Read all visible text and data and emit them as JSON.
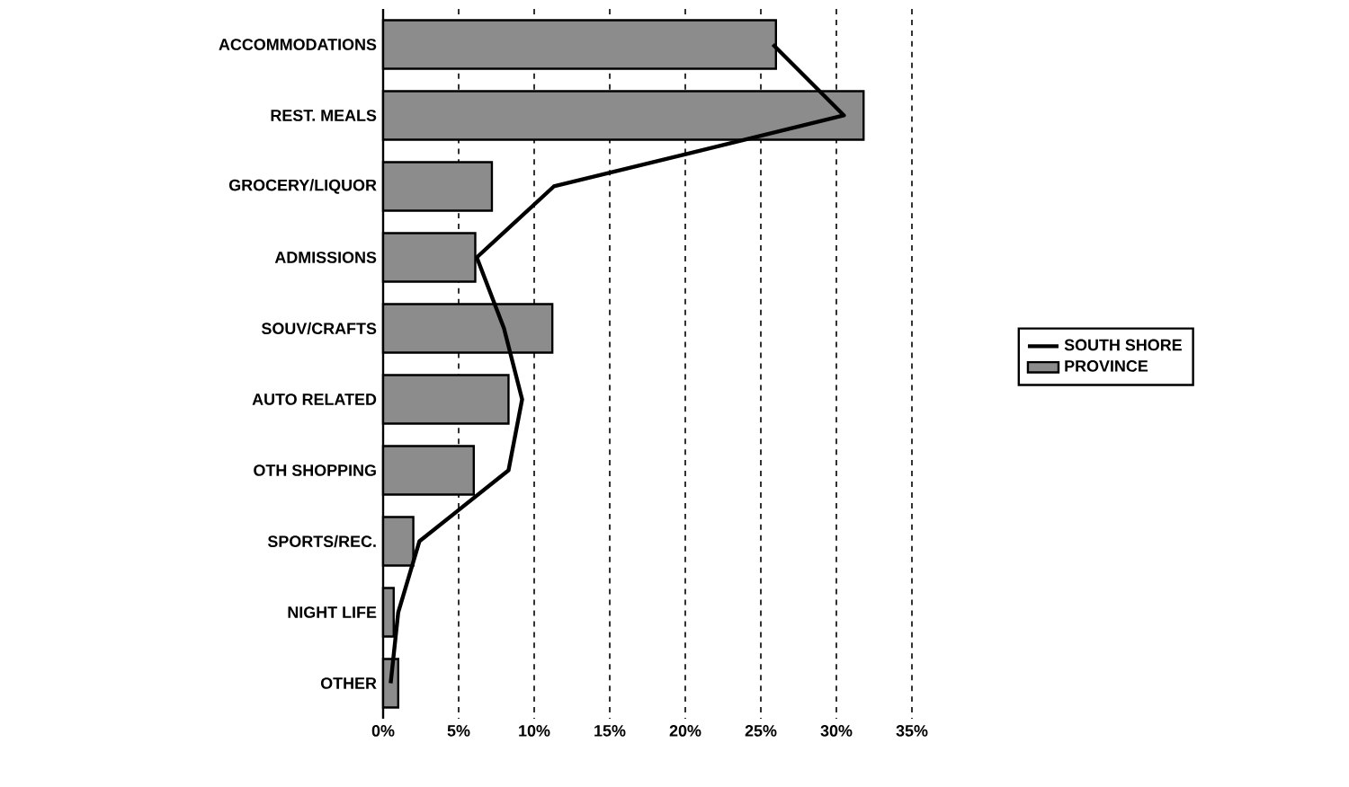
{
  "chart_data": {
    "type": "bar",
    "orientation": "horizontal",
    "categories": [
      "ACCOMMODATIONS",
      "REST. MEALS",
      "GROCERY/LIQUOR",
      "ADMISSIONS",
      "SOUV/CRAFTS",
      "AUTO RELATED",
      "OTH SHOPPING",
      "SPORTS/REC.",
      "NIGHT LIFE",
      "OTHER"
    ],
    "series": [
      {
        "name": "PROVINCE",
        "color": "#8c8c8c",
        "values": [
          26,
          31.8,
          7.2,
          6.1,
          11.2,
          8.3,
          6,
          2,
          0.7,
          1
        ]
      },
      {
        "name": "SOUTH SHORE",
        "type": "line",
        "color": "#000000",
        "values": [
          25.8,
          30.5,
          11.3,
          6.2,
          8,
          9.2,
          8.3,
          2.4,
          1,
          0.5
        ]
      }
    ],
    "xlim": [
      0,
      35
    ],
    "xticks": [
      {
        "value": 0,
        "label": "0%"
      },
      {
        "value": 5,
        "label": "5%"
      },
      {
        "value": 10,
        "label": "10%"
      },
      {
        "value": 15,
        "label": "15%"
      },
      {
        "value": 20,
        "label": "20%"
      },
      {
        "value": 25,
        "label": "25%"
      },
      {
        "value": 30,
        "label": "30%"
      },
      {
        "value": 35,
        "label": "35%"
      }
    ],
    "grid": "x",
    "legend": "right"
  }
}
